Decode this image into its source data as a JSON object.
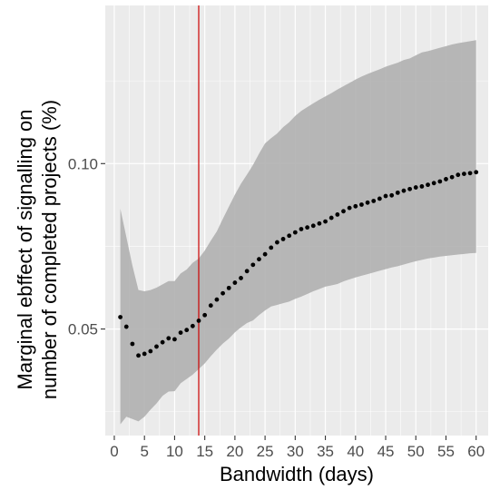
{
  "chart_data": {
    "type": "scatter",
    "title": "",
    "xlabel": "Bandwidth (days)",
    "ylabel_line1": "Marginal ebffect of signalling on",
    "ylabel_line2": "number of completed projects (%)",
    "xlim": [
      -1.5,
      62
    ],
    "ylim": [
      0.0178,
      0.1478
    ],
    "x_ticks": [
      0,
      5,
      10,
      15,
      20,
      25,
      30,
      35,
      40,
      45,
      50,
      55,
      60
    ],
    "x_tick_labels": [
      "0",
      "5",
      "10",
      "15",
      "20",
      "25",
      "30",
      "35",
      "40",
      "45",
      "50",
      "55",
      "60"
    ],
    "y_ticks": [
      0.05,
      0.1
    ],
    "y_tick_labels": [
      "0.05",
      "0.10"
    ],
    "grid": true,
    "vline_x": 14,
    "colors": {
      "panel": "#ebebeb",
      "grid_major": "#ffffff",
      "ribbon": "#b0b0b0",
      "points": "#000000",
      "vline": "#cc0000"
    },
    "series": [
      {
        "x": [
          1,
          2,
          3,
          4,
          5,
          6,
          7,
          8,
          9,
          10,
          11,
          12,
          13,
          14,
          15,
          16,
          17,
          18,
          19,
          20,
          21,
          22,
          23,
          24,
          25,
          26,
          27,
          28,
          29,
          30,
          31,
          32,
          33,
          34,
          35,
          36,
          37,
          38,
          39,
          40,
          41,
          42,
          43,
          44,
          45,
          46,
          47,
          48,
          49,
          50,
          51,
          52,
          53,
          54,
          55,
          56,
          57,
          58,
          59,
          60
        ],
        "y": [
          0.0536,
          0.0507,
          0.0455,
          0.042,
          0.0425,
          0.0433,
          0.0447,
          0.046,
          0.0472,
          0.0469,
          0.0489,
          0.0497,
          0.0509,
          0.0525,
          0.0542,
          0.0571,
          0.0589,
          0.0608,
          0.0624,
          0.064,
          0.0654,
          0.0675,
          0.0694,
          0.0711,
          0.0726,
          0.0746,
          0.0762,
          0.0772,
          0.0782,
          0.0792,
          0.0802,
          0.0807,
          0.0812,
          0.0819,
          0.0825,
          0.0836,
          0.0846,
          0.0856,
          0.0866,
          0.0871,
          0.0876,
          0.0882,
          0.0887,
          0.0894,
          0.0902,
          0.0904,
          0.0912,
          0.0918,
          0.0923,
          0.0928,
          0.0931,
          0.0936,
          0.0941,
          0.0946,
          0.0953,
          0.0959,
          0.0966,
          0.0969,
          0.0971,
          0.0974
        ],
        "ci_low": [
          0.0212,
          0.0235,
          0.0228,
          0.0221,
          0.0235,
          0.0256,
          0.0275,
          0.0298,
          0.0311,
          0.0312,
          0.0336,
          0.0349,
          0.0362,
          0.0379,
          0.0396,
          0.0418,
          0.0438,
          0.0456,
          0.0471,
          0.049,
          0.0505,
          0.0518,
          0.0526,
          0.0542,
          0.0556,
          0.0568,
          0.0573,
          0.0578,
          0.0583,
          0.0591,
          0.0598,
          0.0606,
          0.0614,
          0.0621,
          0.0628,
          0.0632,
          0.0636,
          0.0644,
          0.065,
          0.0656,
          0.0661,
          0.0666,
          0.0671,
          0.0676,
          0.0681,
          0.0686,
          0.069,
          0.0695,
          0.07,
          0.0705,
          0.0709,
          0.0713,
          0.0716,
          0.0719,
          0.0721,
          0.0723,
          0.0725,
          0.0727,
          0.0729,
          0.073
        ],
        "ci_high": [
          0.0864,
          0.0778,
          0.0692,
          0.0618,
          0.0614,
          0.0618,
          0.0625,
          0.0635,
          0.0645,
          0.0645,
          0.0668,
          0.068,
          0.07,
          0.0713,
          0.0737,
          0.0767,
          0.0795,
          0.0833,
          0.087,
          0.0906,
          0.0939,
          0.0967,
          0.0996,
          0.103,
          0.1061,
          0.1077,
          0.1091,
          0.111,
          0.1125,
          0.1144,
          0.1159,
          0.1171,
          0.1182,
          0.1193,
          0.1203,
          0.1213,
          0.1224,
          0.1234,
          0.1244,
          0.1254,
          0.1263,
          0.1271,
          0.1278,
          0.1285,
          0.1293,
          0.1299,
          0.1305,
          0.1313,
          0.1318,
          0.1327,
          0.1336,
          0.134,
          0.1345,
          0.135,
          0.1355,
          0.136,
          0.1364,
          0.1367,
          0.137,
          0.1373
        ]
      }
    ]
  }
}
